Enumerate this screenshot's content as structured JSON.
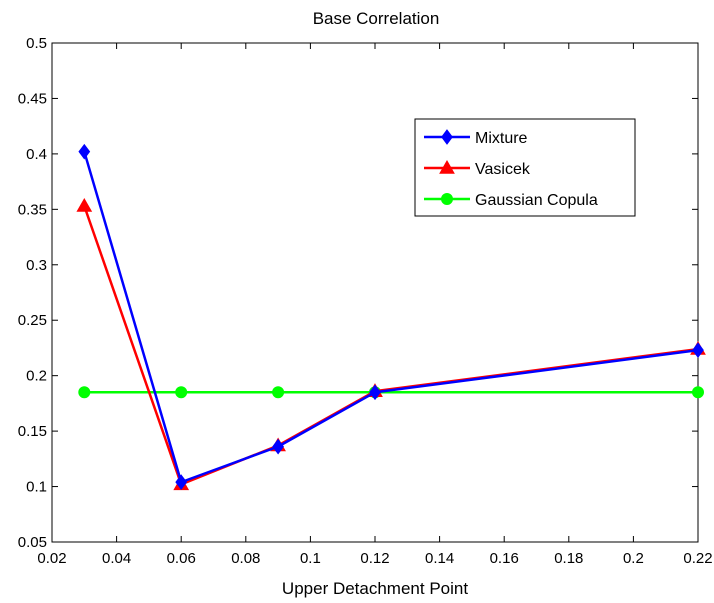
{
  "chart_data": {
    "type": "line",
    "title": "Base Correlation",
    "xlabel": "Upper Detachment Point",
    "ylabel": "",
    "xlim": [
      0.02,
      0.22
    ],
    "ylim": [
      0.05,
      0.5
    ],
    "xticks": [
      "0.02",
      "0.04",
      "0.06",
      "0.08",
      "0.1",
      "0.12",
      "0.14",
      "0.16",
      "0.18",
      "0.2",
      "0.22"
    ],
    "yticks": [
      "0.05",
      "0.1",
      "0.15",
      "0.2",
      "0.25",
      "0.3",
      "0.35",
      "0.4",
      "0.45",
      "0.5"
    ],
    "grid": false,
    "legend_position": "upper-right",
    "x": [
      0.03,
      0.06,
      0.09,
      0.12,
      0.22
    ],
    "series": [
      {
        "name": "Mixture",
        "color": "#0000ff",
        "marker": "diamond",
        "values": [
          0.402,
          0.104,
          0.136,
          0.185,
          0.223
        ]
      },
      {
        "name": "Vasicek",
        "color": "#ff0000",
        "marker": "triangle",
        "values": [
          0.353,
          0.102,
          0.137,
          0.186,
          0.224
        ]
      },
      {
        "name": "Gaussian Copula",
        "color": "#00ff00",
        "marker": "circle",
        "values": [
          0.185,
          0.185,
          0.185,
          0.185,
          0.185
        ]
      }
    ]
  }
}
